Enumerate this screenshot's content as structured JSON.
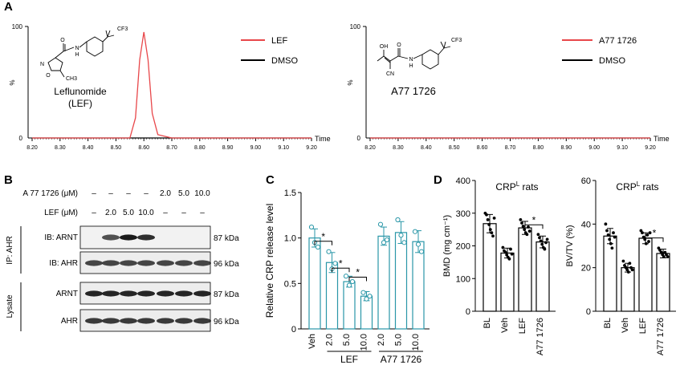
{
  "panels": {
    "A": "A",
    "B": "B",
    "C": "C",
    "D": "D"
  },
  "colors": {
    "red": "#e8474a",
    "black": "#000000",
    "teal": "#2a97a8",
    "blot_dark": "#1a1a1a"
  },
  "panelA": {
    "left": {
      "ylabel": "%",
      "y_ticks": [
        "100",
        "0"
      ],
      "x_ticks": [
        "8.20",
        "8.30",
        "8.40",
        "8.50",
        "8.60",
        "8.70",
        "8.80",
        "8.90",
        "9.00",
        "9.10",
        "9.20"
      ],
      "xlabel": "Time",
      "compound_name": "Leflunomide",
      "compound_abbr": "(LEF)",
      "legend": [
        "LEF",
        "DMSO"
      ],
      "chem": {
        "o": "O",
        "n1": "N",
        "h": "H",
        "cf3": "CF3",
        "ring_n": "N",
        "ring_o": "O",
        "ch3": "CH3"
      }
    },
    "right": {
      "ylabel": "%",
      "y_ticks": [
        "100",
        "0"
      ],
      "x_ticks": [
        "8.20",
        "8.30",
        "8.40",
        "8.50",
        "8.60",
        "8.70",
        "8.80",
        "8.90",
        "9.00",
        "9.10",
        "9.20"
      ],
      "xlabel": "Time",
      "compound_name": "A77 1726",
      "legend": [
        "A77 1726",
        "DMSO"
      ],
      "chem": {
        "oh": "OH",
        "o": "O",
        "n1": "N",
        "h": "H",
        "cn": "CN",
        "cf3": "CF3"
      }
    }
  },
  "panelB": {
    "row_a77_label": "A 77 1726 (μM)",
    "row_a77_values": [
      "–",
      "–",
      "–",
      "–",
      "2.0",
      "5.0",
      "10.0"
    ],
    "row_lef_label": "LEF (μM)",
    "row_lef_values": [
      "–",
      "2.0",
      "5.0",
      "10.0",
      "–",
      "–",
      "–"
    ],
    "blots": [
      {
        "label": "IB: ARNT",
        "kda": "87 kDa"
      },
      {
        "label": "IB: AHR",
        "kda": "96 kDa"
      },
      {
        "label": "ARNT",
        "kda": "87 kDa"
      },
      {
        "label": "AHR",
        "kda": "96 kDa"
      }
    ],
    "group_ip": "IP: AHR",
    "group_lysate": "Lysate",
    "band_intensity": {
      "ib_arnt": [
        0,
        0.75,
        1,
        0.9,
        0,
        0,
        0
      ],
      "ib_ahr": [
        0.8,
        0.8,
        0.8,
        0.8,
        0.8,
        0.8,
        0.8
      ],
      "arnt": [
        0.95,
        0.95,
        0.95,
        0.95,
        0.95,
        0.95,
        0.95
      ],
      "ahr": [
        0.85,
        0.85,
        0.85,
        0.85,
        0.85,
        0.85,
        0.85
      ]
    }
  },
  "chart_data": [
    {
      "type": "line",
      "panel": "A-left",
      "xlabel": "Time",
      "ylabel": "%",
      "xlim": [
        8.2,
        9.2
      ],
      "ylim": [
        0,
        100
      ],
      "series": [
        {
          "name": "LEF",
          "color": "#e8474a",
          "x": [
            8.2,
            8.55,
            8.57,
            8.585,
            8.6,
            8.615,
            8.63,
            8.65,
            8.7,
            9.2
          ],
          "y": [
            0,
            0,
            18,
            70,
            95,
            70,
            22,
            3,
            0,
            0
          ]
        },
        {
          "name": "DMSO",
          "color": "#000000",
          "x": [
            8.2,
            9.2
          ],
          "y": [
            0,
            0
          ]
        }
      ]
    },
    {
      "type": "line",
      "panel": "A-right",
      "xlabel": "Time",
      "ylabel": "%",
      "xlim": [
        8.2,
        9.2
      ],
      "ylim": [
        0,
        100
      ],
      "series": [
        {
          "name": "A77 1726",
          "color": "#e8474a",
          "x": [
            8.2,
            9.2
          ],
          "y": [
            0,
            0
          ]
        },
        {
          "name": "DMSO",
          "color": "#000000",
          "x": [
            8.2,
            9.2
          ],
          "y": [
            0,
            0
          ]
        }
      ]
    },
    {
      "type": "bar",
      "panel": "C",
      "ylabel": "Relative CRP release level",
      "ylim": [
        0,
        1.5
      ],
      "y_ticks": [
        "0",
        "0.5",
        "1.0",
        "1.5"
      ],
      "categories": [
        "Veh",
        "2.0",
        "5.0",
        "10.0",
        "2.0",
        "5.0",
        "10.0"
      ],
      "groups": [
        {
          "name": "LEF",
          "from": 1,
          "to": 3
        },
        {
          "name": "A77 1726",
          "from": 4,
          "to": 6
        }
      ],
      "values": [
        1.0,
        0.73,
        0.52,
        0.36,
        1.02,
        1.06,
        0.96
      ],
      "errors": [
        0.1,
        0.11,
        0.06,
        0.05,
        0.1,
        0.12,
        0.12
      ],
      "points": [
        [
          1.12,
          0.95,
          0.9
        ],
        [
          0.85,
          0.66,
          0.72
        ],
        [
          0.58,
          0.48,
          0.52
        ],
        [
          0.4,
          0.33,
          0.36
        ],
        [
          1.15,
          0.95,
          0.98
        ],
        [
          1.2,
          1.03,
          0.95
        ],
        [
          1.07,
          0.93,
          0.85
        ]
      ],
      "significance": [
        {
          "from": 0,
          "to": 1,
          "label": "*"
        },
        {
          "from": 1,
          "to": 2,
          "label": "*"
        },
        {
          "from": 2,
          "to": 3,
          "label": "*"
        }
      ]
    },
    {
      "type": "bar",
      "panel": "D-left",
      "title": "CRPL rats",
      "title_main": "CRP",
      "title_sup": "L",
      "title_tail": " rats",
      "ylabel": "BMD (mg cm⁻¹)",
      "ylim": [
        0,
        400
      ],
      "y_ticks": [
        "0",
        "100",
        "200",
        "300",
        "400"
      ],
      "categories": [
        "BL",
        "Veh",
        "LEF",
        "A77 1726"
      ],
      "values": [
        268,
        178,
        255,
        212
      ],
      "errors": [
        28,
        15,
        20,
        18
      ],
      "points": [
        [
          300,
          295,
          280,
          265,
          250,
          240,
          230,
          285
        ],
        [
          195,
          185,
          180,
          172,
          165,
          160,
          190,
          175
        ],
        [
          280,
          270,
          260,
          250,
          240,
          235,
          258,
          245
        ],
        [
          235,
          225,
          215,
          205,
          195,
          190,
          210,
          220
        ]
      ],
      "significance": [
        {
          "from": 2,
          "to": 3,
          "label": "*"
        }
      ]
    },
    {
      "type": "bar",
      "panel": "D-right",
      "title": "CRPL rats",
      "title_main": "CRP",
      "title_sup": "L",
      "title_tail": " rats",
      "ylabel": "BV/TV (%)",
      "ylim": [
        0,
        60
      ],
      "y_ticks": [
        "0",
        "20",
        "40",
        "60"
      ],
      "categories": [
        "BL",
        "Veh",
        "LEF",
        "A77 1726"
      ],
      "values": [
        34.5,
        20,
        33.5,
        26.5
      ],
      "errors": [
        3.5,
        2,
        2.5,
        2
      ],
      "points": [
        [
          40,
          37,
          35,
          33,
          31,
          29,
          36,
          34
        ],
        [
          23,
          21,
          20,
          19,
          18,
          22,
          20,
          19
        ],
        [
          37,
          36,
          34,
          33,
          31,
          35,
          32,
          36
        ],
        [
          29,
          28,
          27,
          26,
          25,
          27,
          26,
          25
        ]
      ],
      "significance": [
        {
          "from": 2,
          "to": 3,
          "label": "*"
        }
      ]
    }
  ]
}
